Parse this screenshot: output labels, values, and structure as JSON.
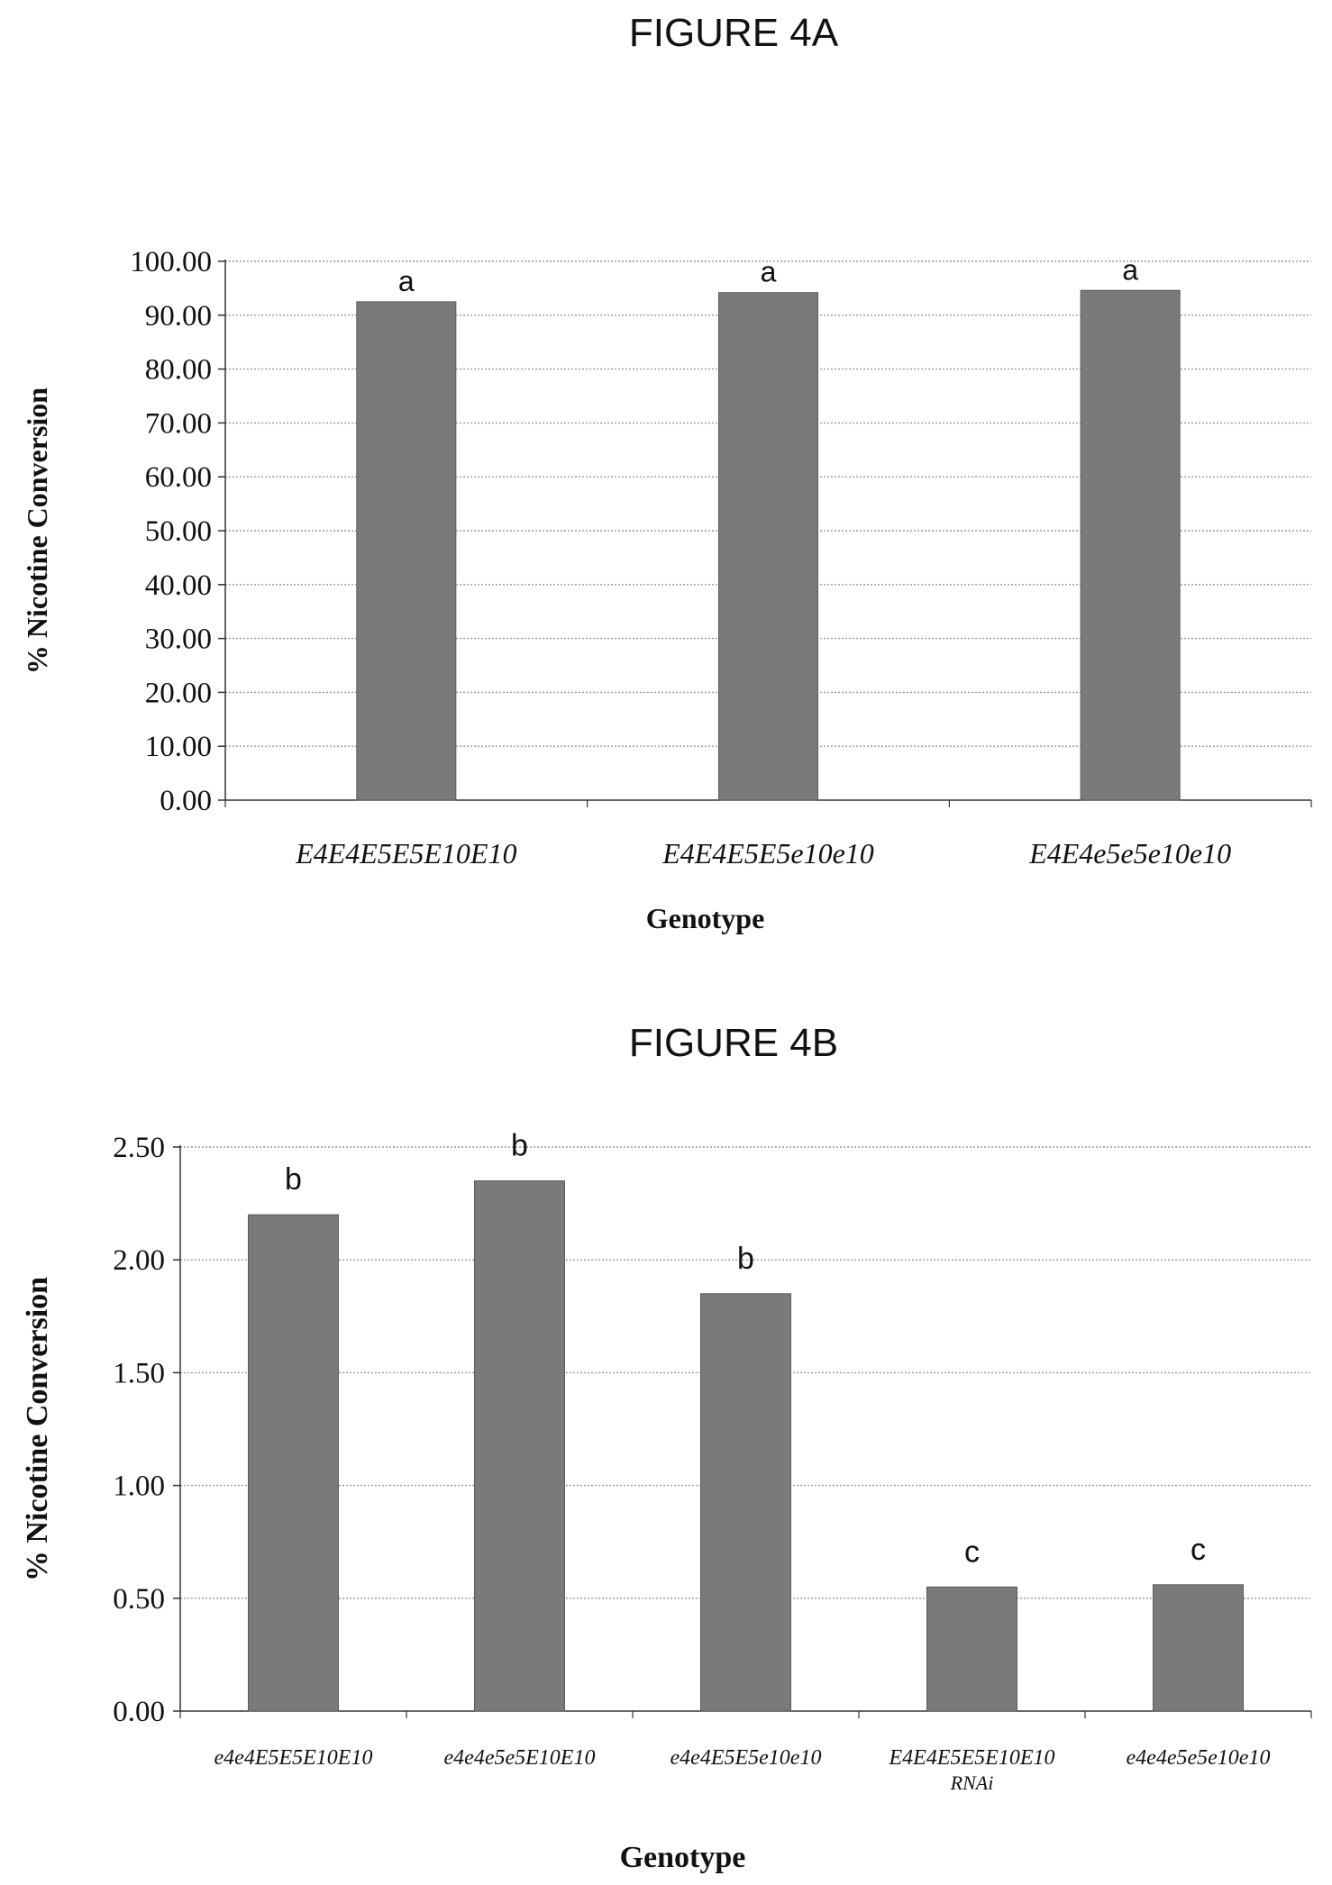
{
  "figures": [
    {
      "title": "FIGURE 4A"
    },
    {
      "title": "FIGURE 4B"
    }
  ],
  "colors": {
    "bar": "#7a7a7a",
    "bar_edge": "#5a5a5a",
    "grid": "#9a9a9a",
    "axis": "#333333"
  },
  "chart_data": [
    {
      "type": "bar",
      "title": "FIGURE 4A",
      "xlabel": "Genotype",
      "ylabel": "% Nicotine Conversion",
      "ylim": [
        0,
        100
      ],
      "y_ticks": [
        "0.00",
        "10.00",
        "20.00",
        "30.00",
        "40.00",
        "50.00",
        "60.00",
        "70.00",
        "80.00",
        "90.00",
        "100.00"
      ],
      "categories": [
        "E4E4E5E5E10E10",
        "E4E4E5E5e10e10",
        "E4E4e5e5e10e10"
      ],
      "values": [
        92.5,
        94.2,
        94.6
      ],
      "annotations": [
        "a",
        "a",
        "a"
      ],
      "grid": true
    },
    {
      "type": "bar",
      "title": "FIGURE 4B",
      "xlabel": "Genotype",
      "ylabel": "% Nicotine Conversion",
      "ylim": [
        0,
        2.5
      ],
      "y_ticks": [
        "0.00",
        "0.50",
        "1.00",
        "1.50",
        "2.00",
        "2.50"
      ],
      "categories": [
        "e4e4E5E5E10E10",
        "e4e4e5e5E10E10",
        "e4e4E5E5e10e10",
        "E4E4E5E5E10E10\nRNAi",
        "e4e4e5e5e10e10"
      ],
      "values": [
        2.2,
        2.35,
        1.85,
        0.55,
        0.56
      ],
      "annotations": [
        "b",
        "b",
        "b",
        "c",
        "c"
      ],
      "grid": true
    }
  ]
}
